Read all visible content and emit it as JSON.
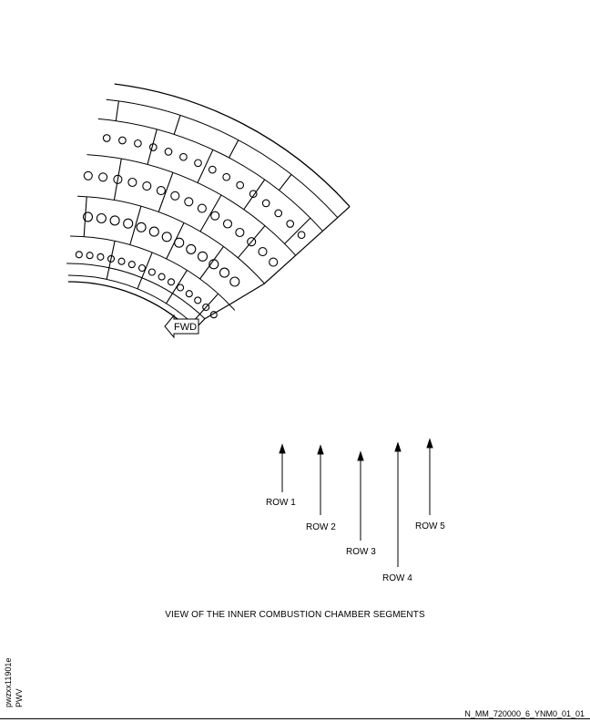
{
  "diagram": {
    "fwd_label": "FWD",
    "rows": [
      "ROW 1",
      "ROW 2",
      "ROW 3",
      "ROW 4",
      "ROW 5"
    ],
    "caption": "VIEW OF THE INNER COMBUSTION CHAMBER SEGMENTS"
  },
  "footer": {
    "figure_code": "pwzxx11901e",
    "source": "PWV",
    "reference": "N_MM_720000_6_YNM0_01_01"
  }
}
